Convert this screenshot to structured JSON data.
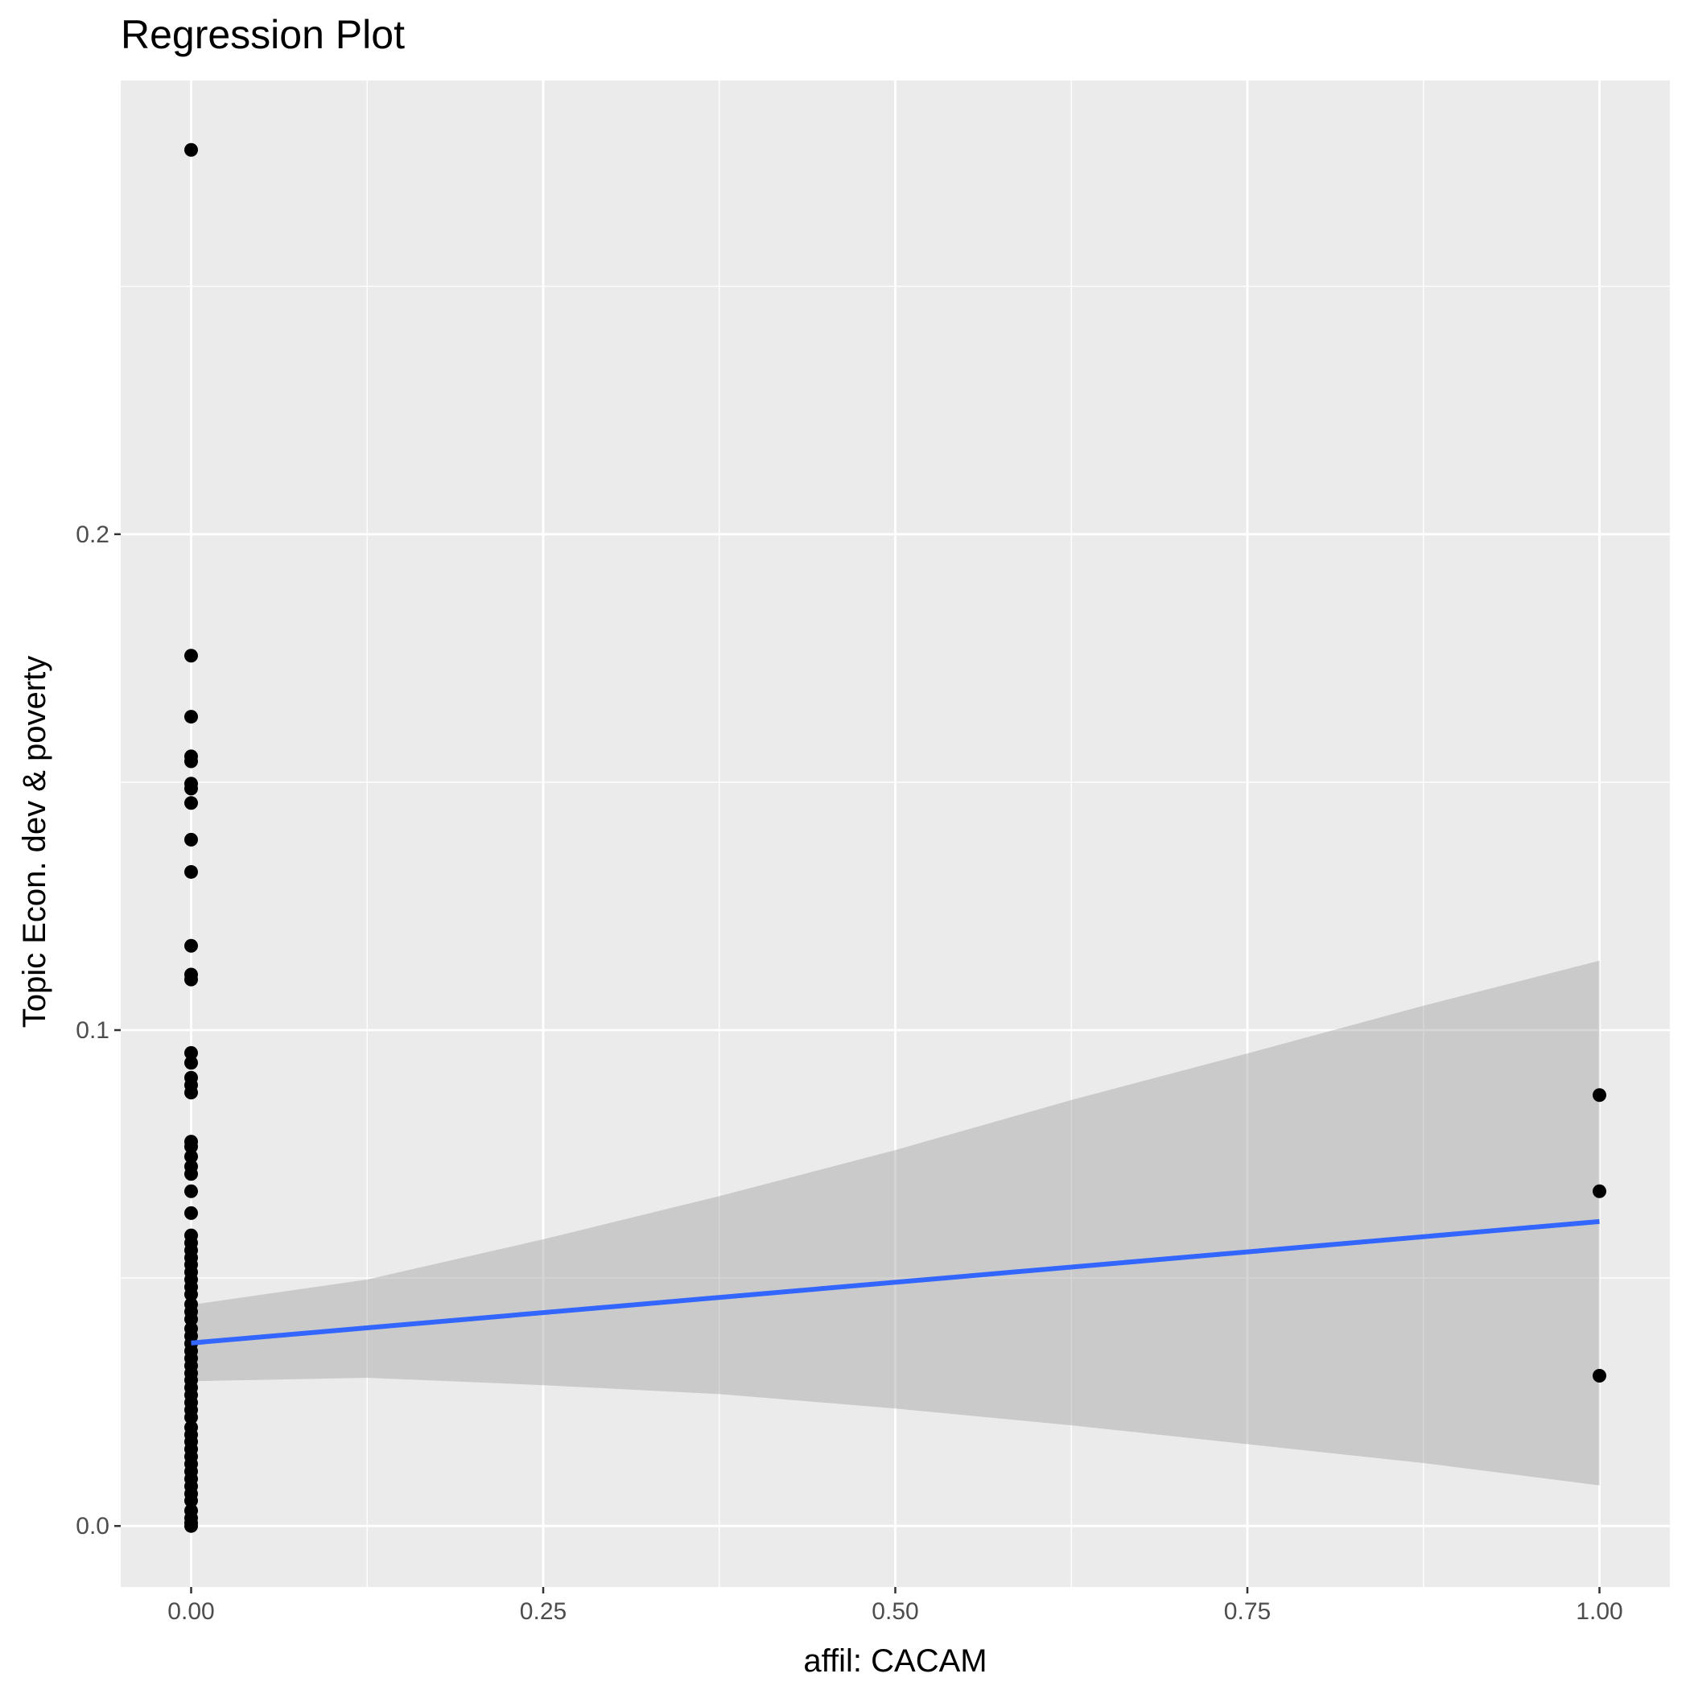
{
  "chart_data": {
    "type": "scatter",
    "title": "Regression Plot",
    "xlabel": "affil: CACAM",
    "ylabel": "Topic Econ. dev & poverty",
    "xlim": [
      -0.05,
      1.05
    ],
    "ylim": [
      -0.0123,
      0.2915
    ],
    "x_ticks": [
      0.0,
      0.25,
      0.5,
      0.75,
      1.0
    ],
    "x_tick_labels": [
      "0.00",
      "0.25",
      "0.50",
      "0.75",
      "1.00"
    ],
    "y_ticks": [
      0.0,
      0.1,
      0.2
    ],
    "y_tick_labels": [
      "0.0",
      "0.1",
      "0.2"
    ],
    "grid": true,
    "colors": {
      "panel": "#ebebeb",
      "grid": "#ffffff",
      "points": "#000000",
      "regression_line": "#3366ff",
      "confidence_band": "#999999"
    },
    "series": [
      {
        "type": "scatter",
        "points": [
          [
            0,
            0.2775
          ],
          [
            0,
            0.1755
          ],
          [
            0,
            0.1632
          ],
          [
            0,
            0.1552
          ],
          [
            0,
            0.1542
          ],
          [
            0,
            0.1497
          ],
          [
            0,
            0.1487
          ],
          [
            0,
            0.1458
          ],
          [
            0,
            0.1384
          ],
          [
            0,
            0.1319
          ],
          [
            0,
            0.117
          ],
          [
            0,
            0.1112
          ],
          [
            0,
            0.1102
          ],
          [
            0,
            0.0954
          ],
          [
            0,
            0.0934
          ],
          [
            0,
            0.0904
          ],
          [
            0,
            0.0889
          ],
          [
            0,
            0.0874
          ],
          [
            0,
            0.0775
          ],
          [
            0,
            0.0765
          ],
          [
            0,
            0.0745
          ],
          [
            0,
            0.0725
          ],
          [
            0,
            0.071
          ],
          [
            0,
            0.0675
          ],
          [
            0,
            0.0631
          ],
          [
            0,
            0.0586
          ],
          [
            0,
            0.0571
          ],
          [
            0,
            0.0556
          ],
          [
            0,
            0.0541
          ],
          [
            0,
            0.0527
          ],
          [
            0,
            0.0512
          ],
          [
            0,
            0.0497
          ],
          [
            0,
            0.0482
          ],
          [
            0,
            0.0467
          ],
          [
            0,
            0.0447
          ],
          [
            0,
            0.0432
          ],
          [
            0,
            0.0417
          ],
          [
            0,
            0.0398
          ],
          [
            0,
            0.0383
          ],
          [
            0,
            0.0368
          ],
          [
            0,
            0.0353
          ],
          [
            0,
            0.0338
          ],
          [
            0,
            0.0323
          ],
          [
            0,
            0.0308
          ],
          [
            0,
            0.0294
          ],
          [
            0,
            0.0279
          ],
          [
            0,
            0.0264
          ],
          [
            0,
            0.0249
          ],
          [
            0,
            0.0234
          ],
          [
            0,
            0.0219
          ],
          [
            0,
            0.0199
          ],
          [
            0,
            0.0184
          ],
          [
            0,
            0.017
          ],
          [
            0,
            0.0155
          ],
          [
            0,
            0.014
          ],
          [
            0,
            0.0125
          ],
          [
            0,
            0.011
          ],
          [
            0,
            0.0095
          ],
          [
            0,
            0.008
          ],
          [
            0,
            0.0065
          ],
          [
            0,
            0.0051
          ],
          [
            0,
            0.0031
          ],
          [
            0,
            0.0016
          ],
          [
            0,
            0.0006
          ],
          [
            0,
            0.0
          ],
          [
            1,
            0.0869
          ],
          [
            1,
            0.0675
          ],
          [
            1,
            0.0303
          ]
        ]
      },
      {
        "type": "line",
        "method": "linear fit",
        "x": [
          0,
          1
        ],
        "y": [
          0.0369,
          0.0614
        ]
      },
      {
        "type": "area",
        "method": "confidence band",
        "x": [
          0,
          0.125,
          0.25,
          0.375,
          0.5,
          0.625,
          0.75,
          0.875,
          1
        ],
        "ymin": [
          0.0292,
          0.0299,
          0.0284,
          0.0266,
          0.0237,
          0.0203,
          0.0165,
          0.0127,
          0.0082
        ],
        "ymax": [
          0.0446,
          0.0497,
          0.0578,
          0.0665,
          0.0758,
          0.0859,
          0.0953,
          0.1049,
          0.114
        ]
      }
    ]
  }
}
